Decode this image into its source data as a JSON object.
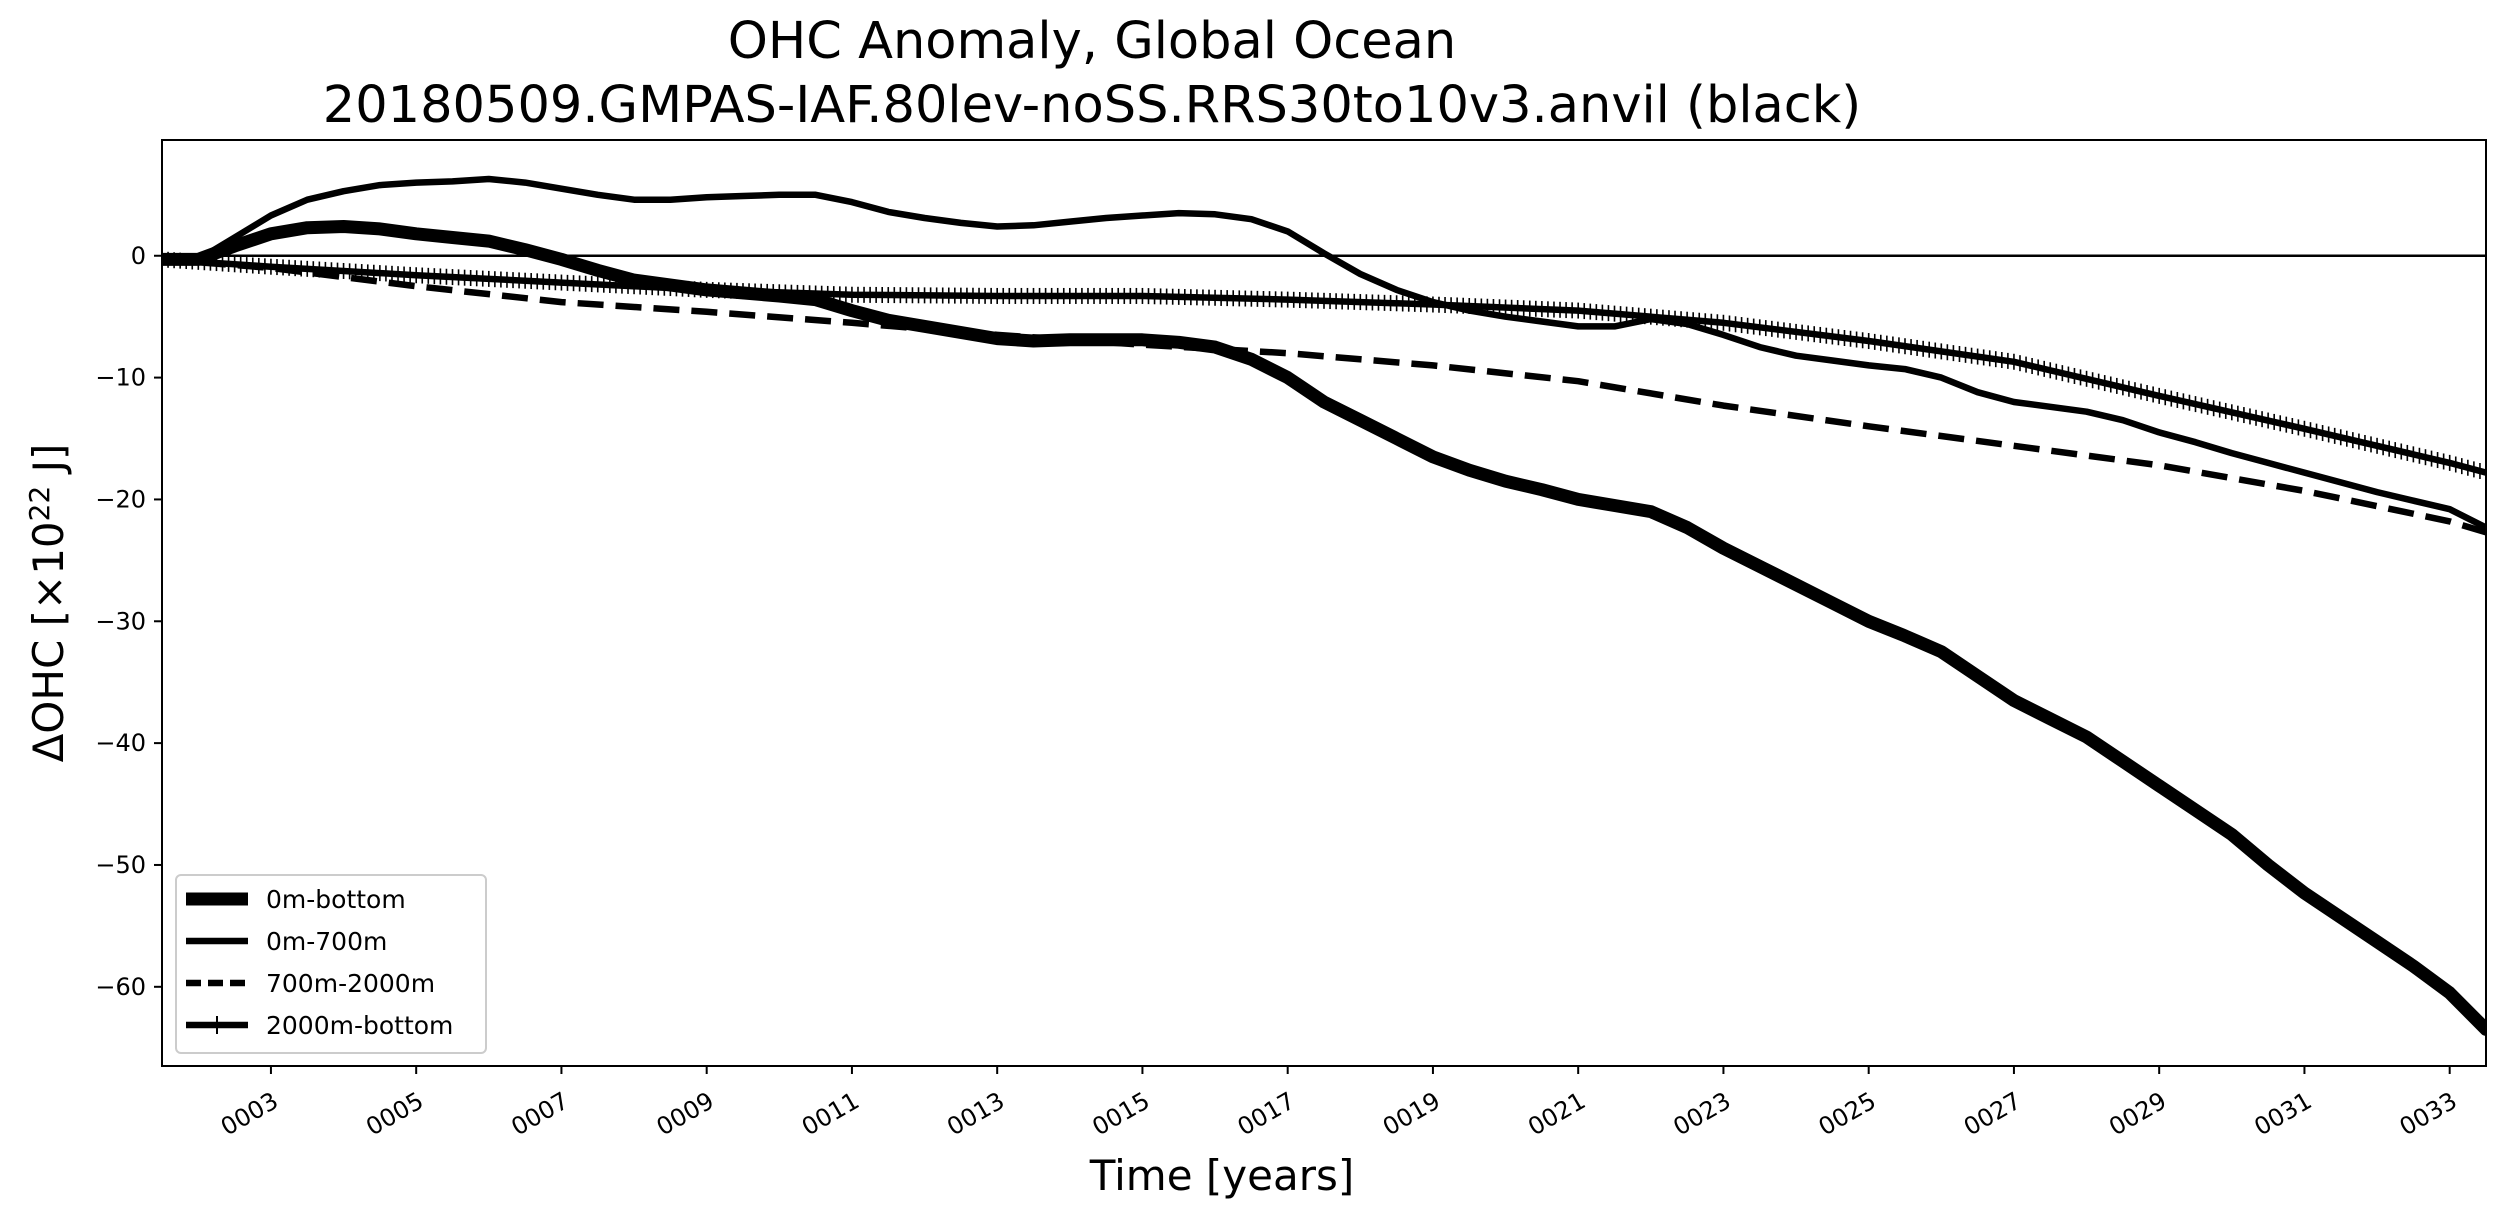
{
  "chart_data": {
    "type": "line",
    "title_line1": "OHC Anomaly, Global Ocean",
    "title_line2": "20180509.GMPAS-IAF.80lev-noSS.RRS30to10v3.anvil (black)",
    "xlabel": "Time [years]",
    "ylabel_main": "ΔOHC [×10",
    "ylabel_exp": "22",
    "ylabel_tail": " J]",
    "xlim": [
      1.5,
      33.5
    ],
    "ylim": [
      -66.5,
      9.5
    ],
    "x_ticks": [
      3,
      5,
      7,
      9,
      11,
      13,
      15,
      17,
      19,
      21,
      23,
      25,
      27,
      29,
      31,
      33
    ],
    "x_tick_labels": [
      "0003",
      "0005",
      "0007",
      "0009",
      "0011",
      "0013",
      "0015",
      "0017",
      "0019",
      "0021",
      "0023",
      "0025",
      "0027",
      "0029",
      "0031",
      "0033"
    ],
    "y_ticks": [
      0,
      -10,
      -20,
      -30,
      -40,
      -50,
      -60
    ],
    "y_tick_labels": [
      "0",
      "−10",
      "−20",
      "−30",
      "−40",
      "−50",
      "−60"
    ],
    "zero_line": true,
    "grid": false,
    "legend_position": "lower-left",
    "series": [
      {
        "name": "0m-bottom",
        "style": "solid-thick",
        "x": [
          1.5,
          2,
          2.5,
          3,
          3.5,
          4,
          4.5,
          5,
          5.5,
          6,
          6.5,
          7,
          7.5,
          8,
          9,
          10,
          10.5,
          11,
          11.5,
          12,
          12.5,
          13,
          13.5,
          14,
          15,
          15.5,
          16,
          16.5,
          17,
          17.5,
          18,
          18.5,
          19,
          19.5,
          20,
          20.5,
          21,
          21.5,
          22,
          22.5,
          23,
          23.5,
          24,
          24.5,
          25,
          25.5,
          26,
          26.5,
          27,
          27.5,
          28,
          28.5,
          29,
          29.5,
          30,
          30.5,
          31,
          31.5,
          32,
          32.5,
          33,
          33.5
        ],
        "y": [
          -0.3,
          -0.3,
          0.8,
          1.8,
          2.3,
          2.4,
          2.2,
          1.8,
          1.5,
          1.2,
          0.5,
          -0.3,
          -1.2,
          -2.0,
          -2.8,
          -3.3,
          -3.6,
          -4.5,
          -5.3,
          -5.8,
          -6.3,
          -6.8,
          -7.0,
          -6.9,
          -6.9,
          -7.1,
          -7.5,
          -8.5,
          -10.0,
          -12.0,
          -13.5,
          -15.0,
          -16.5,
          -17.6,
          -18.5,
          -19.2,
          -20.0,
          -20.5,
          -21.0,
          -22.3,
          -24.0,
          -25.5,
          -27.0,
          -28.5,
          -30.0,
          -31.2,
          -32.5,
          -34.5,
          -36.5,
          -38.0,
          -39.5,
          -41.5,
          -43.5,
          -45.5,
          -47.5,
          -50.0,
          -52.3,
          -54.3,
          -56.3,
          -58.3,
          -60.5,
          -63.5
        ]
      },
      {
        "name": "0m-700m",
        "style": "solid",
        "x": [
          1.5,
          2,
          2.5,
          3,
          3.5,
          4,
          4.5,
          5,
          5.5,
          6,
          6.5,
          7,
          7.5,
          8,
          8.5,
          9,
          9.5,
          10,
          10.5,
          11,
          11.5,
          12,
          12.5,
          13,
          13.5,
          14,
          14.5,
          15,
          15.5,
          16,
          16.5,
          17,
          17.5,
          18,
          18.5,
          19,
          19.5,
          20,
          20.5,
          21,
          21.5,
          22,
          22.5,
          23,
          23.5,
          24,
          24.5,
          25,
          25.5,
          26,
          26.5,
          27,
          27.5,
          28,
          28.5,
          29,
          29.5,
          30,
          30.5,
          31,
          31.5,
          32,
          32.5,
          33,
          33.5
        ],
        "y": [
          -0.3,
          -0.3,
          1.5,
          3.3,
          4.6,
          5.3,
          5.8,
          6.0,
          6.1,
          6.3,
          6.0,
          5.5,
          5.0,
          4.6,
          4.6,
          4.8,
          4.9,
          5.0,
          5.0,
          4.4,
          3.6,
          3.1,
          2.7,
          2.4,
          2.5,
          2.8,
          3.1,
          3.3,
          3.5,
          3.4,
          3.0,
          2.0,
          0.2,
          -1.5,
          -2.8,
          -3.8,
          -4.5,
          -5.0,
          -5.4,
          -5.8,
          -5.8,
          -5.2,
          -5.6,
          -6.5,
          -7.5,
          -8.2,
          -8.6,
          -9.0,
          -9.3,
          -10.0,
          -11.2,
          -12.0,
          -12.4,
          -12.8,
          -13.5,
          -14.5,
          -15.3,
          -16.2,
          -17.0,
          -17.8,
          -18.6,
          -19.4,
          -20.1,
          -20.8,
          -22.3
        ]
      },
      {
        "name": "700m-2000m",
        "style": "dashed",
        "x": [
          1.5,
          3,
          5,
          7,
          9,
          11,
          13,
          15,
          17,
          19,
          21,
          23,
          25,
          27,
          29,
          31,
          33,
          33.5
        ],
        "y": [
          -0.3,
          -1.0,
          -2.5,
          -3.8,
          -4.6,
          -5.5,
          -6.5,
          -7.3,
          -8.0,
          -9.0,
          -10.3,
          -12.3,
          -14.0,
          -15.6,
          -17.2,
          -19.3,
          -21.8,
          -22.7
        ]
      },
      {
        "name": "2000m-bottom",
        "style": "solid-markers",
        "x": [
          1.5,
          3,
          5,
          7,
          9,
          11,
          13,
          15,
          17,
          19,
          21,
          23,
          25,
          27,
          29,
          31,
          33,
          33.5
        ],
        "y": [
          -0.3,
          -0.9,
          -1.6,
          -2.2,
          -2.8,
          -3.2,
          -3.3,
          -3.3,
          -3.6,
          -4.0,
          -4.5,
          -5.5,
          -7.0,
          -8.7,
          -11.5,
          -14.2,
          -17.0,
          -17.8
        ]
      }
    ]
  }
}
